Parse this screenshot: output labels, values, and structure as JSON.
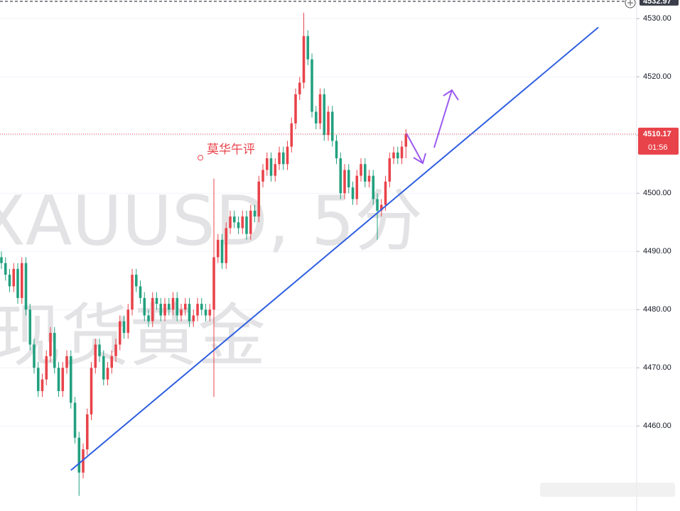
{
  "chart_data": {
    "type": "candlestick",
    "watermark": [
      "XAUUSD, 5分",
      "现货黄金"
    ],
    "annotation": {
      "text": "莫华午评",
      "index": 48.7,
      "price": 4506.1
    },
    "up_color": "#e8434a",
    "down_color": "#22a07f",
    "open": [
      4489,
      4488,
      4486,
      4484,
      4487,
      4482,
      4488,
      4480,
      4474,
      4470,
      4466,
      4468,
      4472,
      4476,
      4470,
      4466,
      4470,
      4472,
      4464,
      4458,
      4452,
      4456,
      4462,
      4470,
      4474,
      4472,
      4468,
      4470,
      4472,
      4474,
      4478,
      4476,
      4480,
      4486,
      4484,
      4482,
      4479,
      4478,
      4482,
      4481,
      4479,
      4481,
      4480,
      4482,
      4479,
      4480,
      4481,
      4478,
      4479,
      4481,
      4480,
      4479,
      4480,
      4489,
      4492,
      4488,
      4494,
      4496,
      4495,
      4494,
      4496,
      4493,
      4497,
      4496,
      4502,
      4504,
      4506,
      4503,
      4505,
      4507,
      4505,
      4508,
      4512,
      4517,
      4519,
      4527,
      4523,
      4514,
      4512,
      4517,
      4510,
      4514,
      4509,
      4506,
      4500,
      4504,
      4501,
      4499,
      4503,
      4505,
      4502,
      4503,
      4499,
      4497,
      4498,
      4502,
      4506,
      4507,
      4506,
      4508
    ],
    "high": [
      4490,
      4489,
      4487,
      4488,
      4488,
      4489,
      4489,
      4481,
      4475,
      4471,
      4469,
      4473,
      4477,
      4477,
      4471,
      4471,
      4473,
      4473,
      4465,
      4459,
      4457,
      4463,
      4471,
      4475,
      4475,
      4473,
      4471,
      4473,
      4475,
      4479,
      4479,
      4481,
      4487,
      4487,
      4485,
      4483,
      4480,
      4483,
      4483,
      4482,
      4482,
      4482,
      4483,
      4483,
      4481,
      4482,
      4482,
      4480,
      4482,
      4482,
      4481,
      4481,
      4502.5,
      4493,
      4493,
      4495,
      4497,
      4497,
      4496,
      4497,
      4497,
      4498,
      4498,
      4503,
      4505,
      4507,
      4507,
      4506,
      4508,
      4508,
      4509,
      4513,
      4518,
      4520,
      4531,
      4528,
      4524,
      4515,
      4518,
      4518,
      4515,
      4515,
      4510,
      4507,
      4505,
      4505,
      4502,
      4504,
      4506,
      4506,
      4504,
      4504,
      4500,
      4499,
      4503,
      4507,
      4508,
      4508,
      4509,
      4511
    ],
    "low": [
      4487,
      4485,
      4483,
      4483,
      4481,
      4481,
      4479,
      4473,
      4469,
      4465,
      4465,
      4467,
      4471,
      4469,
      4465,
      4465,
      4469,
      4463,
      4457,
      4448,
      4451,
      4455,
      4461,
      4469,
      4471,
      4467,
      4467,
      4469,
      4471,
      4473,
      4475,
      4475,
      4479,
      4483,
      4481,
      4478,
      4477,
      4477,
      4480,
      4478,
      4478,
      4479,
      4479,
      4478,
      4478,
      4479,
      4477,
      4477,
      4478,
      4479,
      4478,
      4478,
      4465,
      4488,
      4487,
      4487,
      4493,
      4494,
      4493,
      4493,
      4492,
      4492,
      4495,
      4495,
      4501,
      4503,
      4502,
      4502,
      4504,
      4504,
      4504,
      4507,
      4511,
      4516,
      4518,
      4522,
      4513,
      4511,
      4511,
      4509,
      4509,
      4508,
      4505,
      4499,
      4499,
      4500,
      4498,
      4498,
      4502,
      4501,
      4501,
      4498,
      4492,
      4496,
      4497,
      4501,
      4505,
      4505,
      4505,
      4506
    ],
    "close": [
      4488,
      4486,
      4484,
      4487,
      4482,
      4488,
      4480,
      4474,
      4470,
      4466,
      4468,
      4472,
      4476,
      4470,
      4466,
      4470,
      4472,
      4464,
      4458,
      4452,
      4456,
      4462,
      4470,
      4474,
      4472,
      4468,
      4470,
      4472,
      4474,
      4478,
      4476,
      4480,
      4486,
      4484,
      4482,
      4479,
      4478,
      4482,
      4481,
      4479,
      4481,
      4480,
      4482,
      4479,
      4480,
      4481,
      4478,
      4479,
      4481,
      4480,
      4479,
      4480,
      4489,
      4492,
      4488,
      4494,
      4496,
      4495,
      4494,
      4496,
      4493,
      4497,
      4496,
      4502,
      4504,
      4506,
      4503,
      4505,
      4507,
      4505,
      4508,
      4512,
      4517,
      4519,
      4527,
      4523,
      4514,
      4512,
      4517,
      4510,
      4514,
      4509,
      4506,
      4500,
      4504,
      4501,
      4499,
      4503,
      4505,
      4502,
      4503,
      4499,
      4497,
      4498,
      4502,
      4506,
      4507,
      4506,
      4508,
      4510.17
    ],
    "trendline": {
      "x": [
        17.0,
        146.1
      ],
      "y": [
        4452.4,
        4528.5
      ],
      "color": "#2f5fe0"
    },
    "xlim": [
      -0.35,
      155.3
    ],
    "ylim": [
      4445.4,
      4533.2
    ],
    "yticks": [
      {
        "value": 4460,
        "label": "4460.00"
      },
      {
        "value": 4470,
        "label": "4470.00"
      },
      {
        "value": 4480,
        "label": "4480.00"
      },
      {
        "value": 4490,
        "label": "4490.00"
      },
      {
        "value": 4500,
        "label": "4500.00"
      },
      {
        "value": 4510,
        "label": "4510.00"
      },
      {
        "value": 4520,
        "label": "4520.00"
      },
      {
        "value": 4530,
        "label": "4530.00"
      }
    ],
    "grid": true,
    "last_price": {
      "value": 4510.17,
      "label": "4510.17",
      "countdown": "01:56"
    },
    "high_marker": {
      "value": 4532.97,
      "label": "4532.97"
    }
  }
}
